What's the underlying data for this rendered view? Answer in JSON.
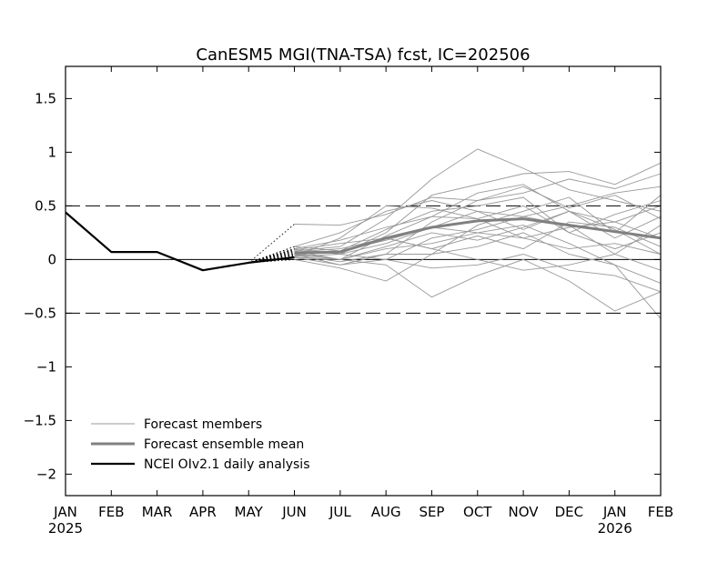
{
  "chart_data": {
    "type": "line",
    "title": "CanESM5 MGI(TNA-TSA) fcst, IC=202506",
    "x_categories": [
      "JAN",
      "FEB",
      "MAR",
      "APR",
      "MAY",
      "JUN",
      "JUL",
      "AUG",
      "SEP",
      "OCT",
      "NOV",
      "DEC",
      "JAN",
      "FEB"
    ],
    "year_labels": [
      {
        "index": 0,
        "label": "2025"
      },
      {
        "index": 12,
        "label": "2026"
      }
    ],
    "ylim": [
      -2.2,
      1.8
    ],
    "yticks": [
      1.5,
      1,
      0.5,
      0,
      -0.5,
      -1,
      -1.5,
      -2
    ],
    "ytick_labels": [
      "1.5",
      "1",
      "0.5",
      "0",
      "-0.5",
      "-1",
      "-1.5",
      "-2"
    ],
    "reference_lines": [
      {
        "y": 0.5,
        "style": "dashed"
      },
      {
        "y": 0,
        "style": "solid"
      },
      {
        "y": -0.5,
        "style": "dashed"
      }
    ],
    "colors": {
      "members": "#999999",
      "ensemble_mean": "#808080",
      "observed": "#000000",
      "dotted_transition": "#000000"
    },
    "observed": {
      "x": [
        0,
        1,
        2,
        3,
        4,
        5
      ],
      "values": [
        0.44,
        0.07,
        0.07,
        -0.1,
        -0.03,
        0.02
      ]
    },
    "transition_start": {
      "x": 4,
      "value": -0.03
    },
    "members": [
      [
        0.33,
        0.32,
        0.42,
        0.58,
        0.55,
        0.62,
        0.75,
        0.66,
        0.8
      ],
      [
        0.08,
        0.12,
        0.38,
        0.75,
        1.03,
        0.85,
        0.65,
        0.55,
        0.45
      ],
      [
        0.1,
        0.05,
        0.25,
        0.6,
        0.7,
        0.8,
        0.82,
        0.7,
        0.9
      ],
      [
        0.05,
        -0.05,
        0.05,
        0.35,
        0.55,
        0.68,
        0.48,
        0.6,
        0.38
      ],
      [
        0.0,
        -0.08,
        -0.2,
        0.05,
        0.32,
        0.45,
        0.58,
        0.25,
        0.6
      ],
      [
        0.02,
        0.0,
        0.22,
        0.4,
        0.62,
        0.7,
        0.45,
        0.35,
        0.5
      ],
      [
        0.12,
        0.25,
        0.45,
        0.55,
        0.45,
        0.4,
        0.5,
        0.62,
        0.68
      ],
      [
        0.05,
        0.0,
        0.1,
        0.15,
        0.25,
        0.32,
        0.15,
        -0.05,
        -0.22
      ],
      [
        0.08,
        0.0,
        -0.05,
        -0.35,
        -0.15,
        0.0,
        -0.2,
        -0.48,
        -0.3
      ],
      [
        0.03,
        0.2,
        0.5,
        0.48,
        0.38,
        0.2,
        0.1,
        0.15,
        0.05
      ],
      [
        0.1,
        0.05,
        0.15,
        0.3,
        0.25,
        0.2,
        0.3,
        0.35,
        0.2
      ],
      [
        0.06,
        0.0,
        0.12,
        0.25,
        0.18,
        0.3,
        0.45,
        0.2,
        0.4
      ],
      [
        0.04,
        -0.02,
        0.05,
        0.05,
        0.12,
        0.25,
        0.05,
        -0.05,
        -0.55
      ],
      [
        0.12,
        0.08,
        0.28,
        0.45,
        0.5,
        0.58,
        0.25,
        0.42,
        0.55
      ],
      [
        0.07,
        0.1,
        0.2,
        0.1,
        0.22,
        0.1,
        0.35,
        0.3,
        0.12
      ],
      [
        0.09,
        0.15,
        0.2,
        0.1,
        0.0,
        -0.1,
        -0.05,
        0.05,
        -0.1
      ],
      [
        0.02,
        -0.05,
        0.0,
        -0.08,
        -0.05,
        0.05,
        -0.1,
        -0.15,
        -0.3
      ],
      [
        0.1,
        0.18,
        0.3,
        0.4,
        0.38,
        0.5,
        0.25,
        0.1,
        0.25
      ],
      [
        0.05,
        0.08,
        0.18,
        0.3,
        0.45,
        0.28,
        0.45,
        0.28,
        0.05
      ],
      [
        0.03,
        0.05,
        0.0,
        0.2,
        0.28,
        0.4,
        0.32,
        0.05,
        0.32
      ]
    ],
    "members_x_start": 5,
    "ensemble_mean": {
      "x": [
        5,
        6,
        7,
        8,
        9,
        10,
        11,
        12,
        13
      ],
      "values": [
        0.06,
        0.07,
        0.2,
        0.3,
        0.36,
        0.38,
        0.32,
        0.26,
        0.2
      ]
    },
    "legend": {
      "placement": "lower-left",
      "entries": [
        {
          "label": "Forecast members",
          "style": "members"
        },
        {
          "label": "Forecast ensemble mean",
          "style": "ensemble_mean"
        },
        {
          "label": "NCEI OIv2.1 daily analysis",
          "style": "observed"
        }
      ]
    }
  }
}
